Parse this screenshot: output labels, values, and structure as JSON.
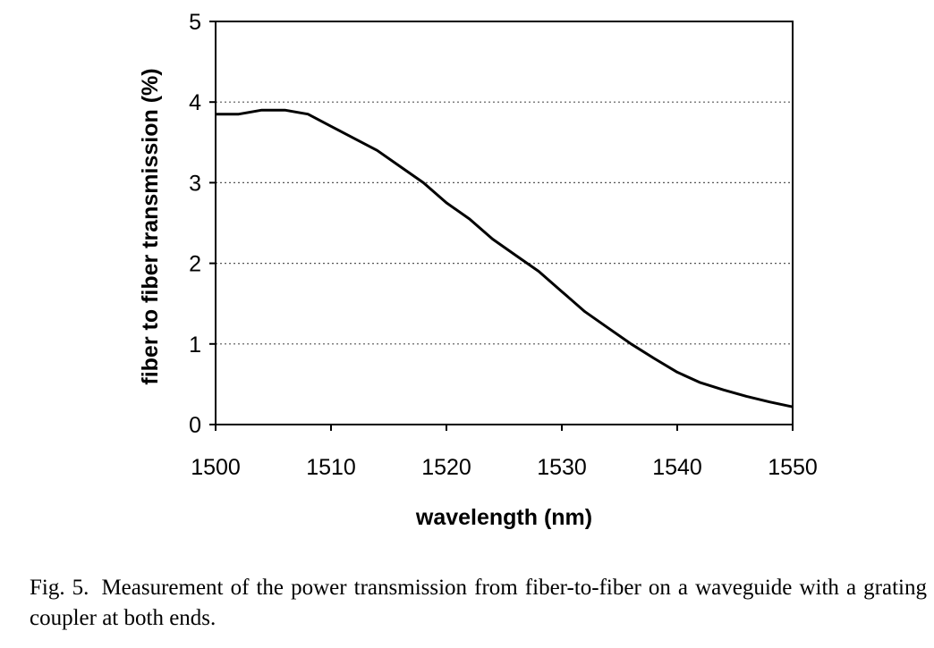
{
  "chart_data": {
    "type": "line",
    "title": "",
    "xlabel": "wavelength (nm)",
    "ylabel": "fiber to fiber transmission (%)",
    "xlim": [
      1500,
      1550
    ],
    "ylim": [
      0,
      5
    ],
    "x_ticks": [
      "1500",
      "1510",
      "1520",
      "1530",
      "1540",
      "1550"
    ],
    "y_ticks": [
      "0",
      "1",
      "2",
      "3",
      "4",
      "5"
    ],
    "grid": "horizontal dotted",
    "legend": "none",
    "series": [
      {
        "color": "#000000",
        "x": [
          1500,
          1502,
          1504,
          1506,
          1508,
          1510,
          1512,
          1514,
          1516,
          1518,
          1520,
          1522,
          1524,
          1526,
          1528,
          1530,
          1532,
          1534,
          1536,
          1538,
          1540,
          1542,
          1544,
          1546,
          1548,
          1550
        ],
        "y": [
          3.85,
          3.85,
          3.9,
          3.9,
          3.85,
          3.7,
          3.55,
          3.4,
          3.2,
          3.0,
          2.75,
          2.55,
          2.3,
          2.1,
          1.9,
          1.65,
          1.4,
          1.2,
          1.0,
          0.82,
          0.65,
          0.52,
          0.43,
          0.35,
          0.28,
          0.22
        ]
      }
    ]
  },
  "caption": {
    "label": "Fig. 5.",
    "text": "Measurement of the power transmission from fiber-to-fiber on a waveguide with a grating coupler at both ends."
  }
}
